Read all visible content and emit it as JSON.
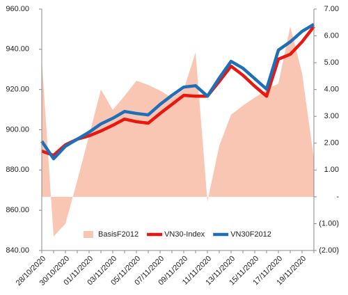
{
  "chart_data": {
    "type": "line",
    "categories": [
      "28/10/2020",
      null,
      "30/10/2020",
      null,
      "01/11/2020",
      null,
      "03/11/2020",
      null,
      "05/11/2020",
      null,
      "07/11/2020",
      null,
      "09/11/2020",
      null,
      "11/11/2020",
      null,
      "13/11/2020",
      null,
      "15/11/2020",
      null,
      "17/11/2020",
      null,
      "19/11/2020",
      null
    ],
    "series": [
      {
        "name": "BasisF2012",
        "type": "area",
        "axis": "y2",
        "color": "#f9c6b3",
        "values": [
          5.13,
          -1.48,
          -1.0,
          0.6,
          2.28,
          4.0,
          3.24,
          3.76,
          4.33,
          4.17,
          3.96,
          3.7,
          4.0,
          5.39,
          -0.18,
          1.9,
          3.06,
          3.4,
          3.7,
          4.0,
          4.22,
          6.35,
          4.6,
          1.42
        ]
      },
      {
        "name": "VN30-Index",
        "type": "line",
        "color": "#e8170f",
        "values": [
          889.4,
          887.3,
          892.5,
          895.3,
          897.0,
          899.4,
          902.2,
          905.3,
          904.0,
          903.3,
          908.1,
          912.6,
          917.1,
          916.7,
          916.7,
          924.0,
          931.6,
          927.1,
          921.6,
          916.7,
          935.1,
          937.5,
          943.7,
          951.3
        ]
      },
      {
        "name": "VN30F2012",
        "type": "line",
        "color": "#1f6fb8",
        "values": [
          894.3,
          885.6,
          891.8,
          895.3,
          898.8,
          902.9,
          905.7,
          909.1,
          908.1,
          907.4,
          912.6,
          917.1,
          921.2,
          921.9,
          916.7,
          925.7,
          934.0,
          930.6,
          925.4,
          920.2,
          939.6,
          943.7,
          948.9,
          952.4
        ]
      }
    ],
    "ylim": [
      840,
      960
    ],
    "yticks": [
      {
        "value": 840,
        "label": "840.00"
      },
      {
        "value": 860,
        "label": "860.00"
      },
      {
        "value": 880,
        "label": "880.00"
      },
      {
        "value": 900,
        "label": "900.00"
      },
      {
        "value": 920,
        "label": "920.00"
      },
      {
        "value": 940,
        "label": "940.00"
      },
      {
        "value": 960,
        "label": "960.00"
      }
    ],
    "y2lim": [
      -2,
      7
    ],
    "y2ticks": [
      {
        "value": -2,
        "label": "(2.00)"
      },
      {
        "value": -1,
        "label": "(1.00)"
      },
      {
        "value": 0,
        "label": "-"
      },
      {
        "value": 1,
        "label": "1.00"
      },
      {
        "value": 2,
        "label": "2.00"
      },
      {
        "value": 3,
        "label": "3.00"
      },
      {
        "value": 4,
        "label": "4.00"
      },
      {
        "value": 5,
        "label": "5.00"
      },
      {
        "value": 6,
        "label": "6.00"
      },
      {
        "value": 7,
        "label": "7.00"
      }
    ],
    "grid": false,
    "legend": "bottom"
  }
}
